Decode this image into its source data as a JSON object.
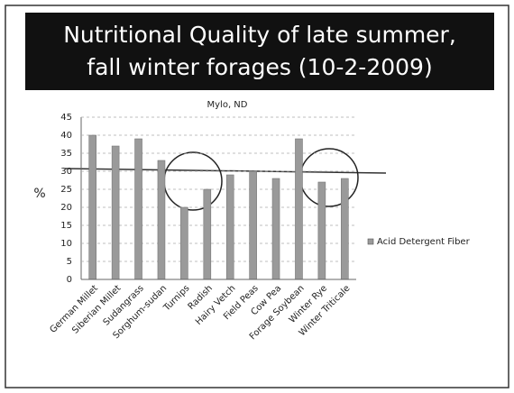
{
  "chart_data": {
    "type": "bar",
    "title": [
      "Nutritional Quality of late summer,",
      "fall winter forages (10-2-2009)"
    ],
    "subtitle": "Mylo, ND",
    "y_label": "%",
    "categories": [
      "German Millet",
      "Siberian Millet",
      "Sudangrass",
      "Sorghum-sudan",
      "Turnips",
      "Radish",
      "Hairy Vetch",
      "Field Peas",
      "Cow Pea",
      "Forage Soybean",
      "Winter Rye",
      "Winter Triticale"
    ],
    "series": [
      {
        "name": "Acid Detergent Fiber",
        "color": "#9a9a9a",
        "values": [
          40,
          37,
          39,
          33,
          20,
          25,
          29,
          30,
          28,
          39,
          27,
          28
        ]
      }
    ],
    "ylim": [
      0,
      45
    ],
    "yticks": [
      0,
      5,
      10,
      15,
      20,
      25,
      30,
      35,
      40,
      45
    ],
    "grid": true,
    "legend": "right"
  }
}
